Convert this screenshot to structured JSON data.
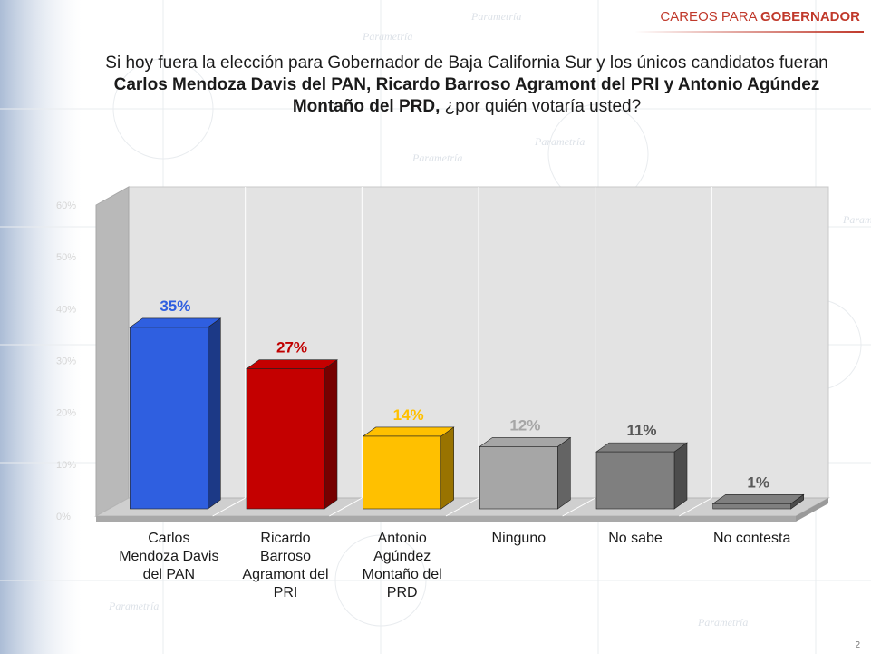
{
  "header": {
    "tag_normal": "CAREOS PARA",
    "tag_bold": "GOBERNADOR"
  },
  "question": {
    "line1": "Si hoy fuera la elección para Gobernador de Baja California Sur y los únicos candidatos fueran",
    "line2_bold": "Carlos Mendoza Davis del PAN, Ricardo Barroso Agramont del PRI y Antonio Agúndez",
    "line3_bold": "Montaño del PRD,",
    "line3_rest": " ¿por quién votaría usted?"
  },
  "watermark": "Parametría",
  "page_number": "2",
  "chart_data": {
    "type": "bar",
    "title": "",
    "xlabel": "",
    "ylabel": "",
    "ylim": [
      0,
      60
    ],
    "yticks": [
      "0%",
      "10%",
      "20%",
      "30%",
      "40%",
      "50%",
      "60%"
    ],
    "grid": true,
    "categories": [
      "Carlos Mendoza Davis del PAN",
      "Ricardo Barroso Agramont del PRI",
      "Antonio Agúndez Montaño del PRD",
      "Ninguno",
      "No sabe",
      "No contesta"
    ],
    "category_lines": [
      [
        "Carlos",
        "Mendoza Davis",
        "del PAN"
      ],
      [
        "Ricardo",
        "Barroso",
        "Agramont del",
        "PRI"
      ],
      [
        "Antonio",
        "Agúndez",
        "Montaño del",
        "PRD"
      ],
      [
        "Ninguno"
      ],
      [
        "No sabe"
      ],
      [
        "No contesta"
      ]
    ],
    "values": [
      35,
      27,
      14,
      12,
      11,
      1
    ],
    "data_labels": [
      "35%",
      "27%",
      "14%",
      "12%",
      "11%",
      "1%"
    ],
    "colors": [
      "#2f5fe0",
      "#c40000",
      "#ffc000",
      "#a6a6a6",
      "#7f7f7f",
      "#7f7f7f"
    ],
    "label_colors": [
      "#2f5fe0",
      "#c00000",
      "#ffc000",
      "#a6a6a6",
      "#595959",
      "#595959"
    ]
  }
}
